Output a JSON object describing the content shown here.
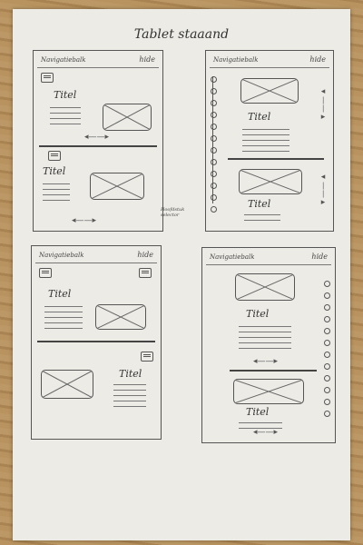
{
  "page_title": "Tablet staaand",
  "frames": [
    {
      "nav": "Navigatiebalk",
      "hide": "hide"
    },
    {
      "nav": "Navigatiebalk",
      "hide": "hide"
    },
    {
      "nav": "Navigatiebalk",
      "hide": "hide"
    },
    {
      "nav": "Navigatiebalk",
      "hide": "hide"
    }
  ],
  "section_title": "Titel",
  "annotation": "Hoofdstuk selector",
  "icons": {
    "arrow": "arrow-left-right-icon",
    "menu": "menu-icon",
    "image": "image-placeholder-icon"
  }
}
